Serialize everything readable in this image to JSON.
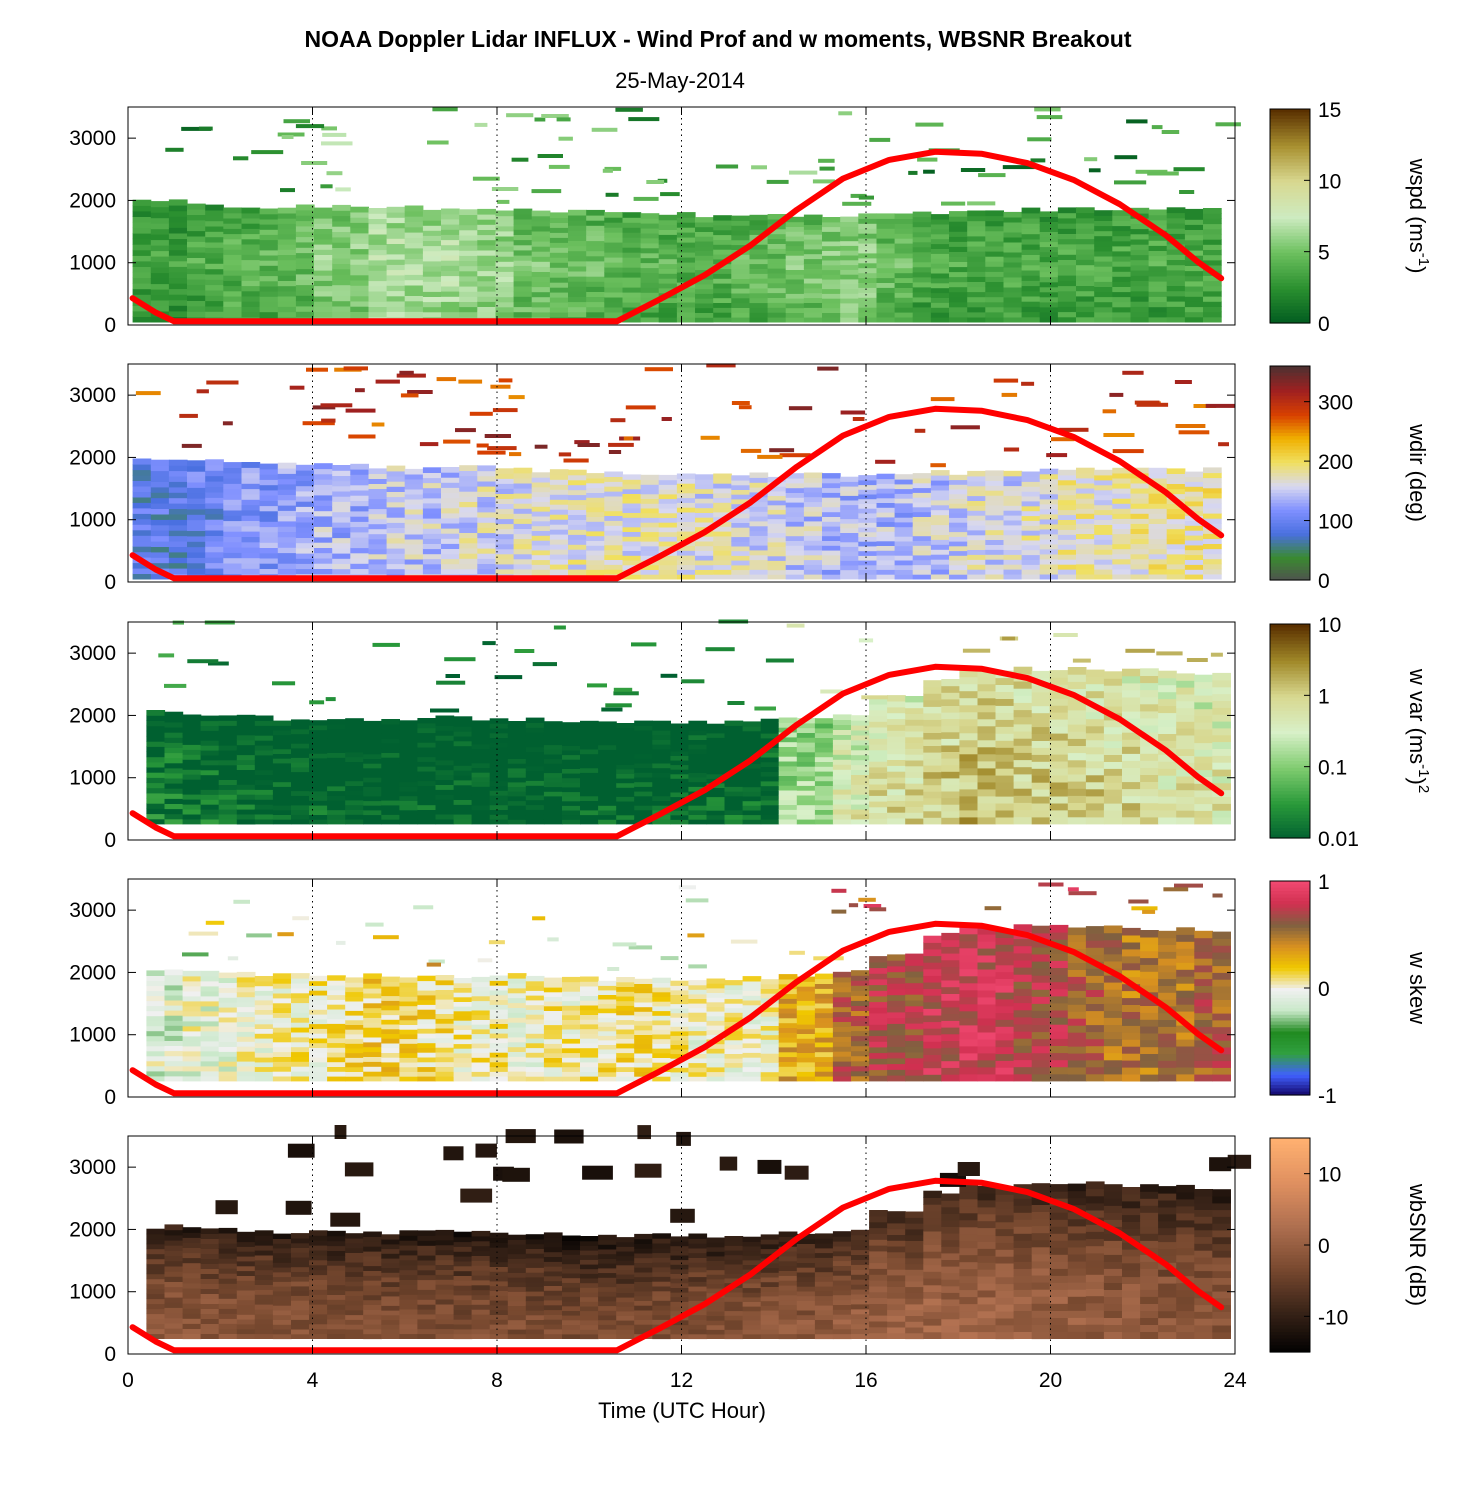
{
  "title": "NOAA Doppler Lidar INFLUX - Wind Prof and w moments, WBSNR Breakout",
  "subtitle": "25-May-2014",
  "chart_data": {
    "type": "heatmap",
    "x": {
      "label": "Time (UTC Hour)",
      "range": [
        0,
        24
      ],
      "ticks": [
        0,
        4,
        8,
        12,
        16,
        20,
        24
      ],
      "tick_labels": [
        "0",
        "4",
        "8",
        "12",
        "16",
        "20",
        "24"
      ],
      "dotted_grid": [
        4,
        8,
        12,
        16,
        20,
        24
      ]
    },
    "y": {
      "range": [
        0,
        3500
      ],
      "ticks": [
        0,
        1000,
        2000,
        3000
      ],
      "tick_labels": [
        "0",
        "1000",
        "2000",
        "3000"
      ]
    },
    "sun_curve": {
      "color": "#ff0000",
      "points": [
        [
          0.1,
          430
        ],
        [
          0.6,
          200
        ],
        [
          1.0,
          60
        ],
        [
          10.6,
          60
        ],
        [
          11.5,
          400
        ],
        [
          12.5,
          800
        ],
        [
          13.5,
          1280
        ],
        [
          14.5,
          1850
        ],
        [
          15.5,
          2350
        ],
        [
          16.5,
          2650
        ],
        [
          17.5,
          2780
        ],
        [
          18.5,
          2750
        ],
        [
          19.5,
          2600
        ],
        [
          20.5,
          2330
        ],
        [
          21.5,
          1940
        ],
        [
          22.5,
          1440
        ],
        [
          23.2,
          1010
        ],
        [
          23.7,
          750
        ]
      ]
    },
    "panels": [
      {
        "name": "wspd",
        "cbar_label_html": "wspd (ms<tspan dy='-9' font-size='15'>-1</tspan><tspan dy='9'>)</tspan>",
        "cbar_label_text": "wspd (ms-1)",
        "cbar_ticks": [
          "15",
          "10",
          "5",
          "0"
        ],
        "cbar_range": [
          0,
          15
        ],
        "cbar_scale": "linear",
        "colormap": [
          "#005a20",
          "#2a8f2f",
          "#6cc05e",
          "#cdebc0",
          "#d8d890",
          "#a89030",
          "#5a3000"
        ],
        "layer_top": [
          2000,
          1950,
          1900,
          1900,
          1900,
          1880,
          1880,
          1860,
          1850,
          1830,
          1800,
          1780,
          1760,
          1750,
          1760,
          1760,
          1780,
          1800,
          1820,
          1860,
          1880,
          1880,
          1870,
          1870
        ],
        "layer_bottom": 50,
        "layer_start": 0.1,
        "layer_end": 23.7,
        "profile": [
          2.5,
          3,
          3.5,
          4,
          5,
          6,
          6,
          5.5,
          4.5,
          4,
          3.5,
          3.5,
          3.5,
          4,
          4.5,
          5,
          4,
          3,
          3,
          3,
          3,
          3,
          3,
          3
        ],
        "scatter_count": 80,
        "scatter_max": 3480
      },
      {
        "name": "wdir",
        "cbar_label_html": "wdir (deg)",
        "cbar_label_text": "wdir (deg)",
        "cbar_ticks": [
          "300",
          "200",
          "100",
          "0"
        ],
        "cbar_range": [
          0,
          360
        ],
        "cbar_scale": "linear",
        "colormap": [
          "#505050",
          "#3a8a30",
          "#4a70e0",
          "#8090ff",
          "#d8d8f0",
          "#f0e060",
          "#f0b000",
          "#d84000",
          "#a02020",
          "#503030"
        ],
        "layer_top": [
          2000,
          1950,
          1900,
          1900,
          1880,
          1850,
          1850,
          1840,
          1800,
          1780,
          1760,
          1740,
          1730,
          1720,
          1720,
          1720,
          1740,
          1760,
          1780,
          1800,
          1800,
          1800,
          1810,
          1810
        ],
        "layer_bottom": 50,
        "layer_start": 0.1,
        "layer_end": 23.7,
        "profile": [
          90,
          100,
          120,
          130,
          140,
          150,
          150,
          160,
          165,
          170,
          170,
          170,
          165,
          160,
          150,
          140,
          140,
          150,
          160,
          170,
          175,
          180,
          185,
          185
        ],
        "scatter_count": 90,
        "scatter_max": 3450
      },
      {
        "name": "wvar",
        "cbar_label_html": "w var (ms<tspan dy='-9' font-size='15'>-1</tspan><tspan dy='9'>)</tspan><tspan dy='-9' font-size='15'>2</tspan>",
        "cbar_label_text": "w var (ms-1)2",
        "cbar_ticks": [
          "10",
          "1",
          "0.1",
          "0.01"
        ],
        "cbar_range": [
          0.01,
          10
        ],
        "cbar_scale": "log",
        "colormap": [
          "#006030",
          "#2a9a3a",
          "#80cc70",
          "#d8f0c8",
          "#d8d890",
          "#a08828",
          "#5a3000"
        ],
        "layer_top": [
          2050,
          2000,
          1980,
          1950,
          1950,
          1950,
          1960,
          1950,
          1950,
          1930,
          1900,
          1900,
          1900,
          1920,
          1950,
          2000,
          2300,
          2600,
          2700,
          2750,
          2750,
          2720,
          2700,
          2650
        ],
        "layer_bottom": 260,
        "layer_start": 0.4,
        "layer_end": 23.9,
        "profile": [
          0.02,
          0.015,
          0.012,
          0.011,
          0.01,
          0.01,
          0.01,
          0.01,
          0.01,
          0.01,
          0.01,
          0.011,
          0.012,
          0.015,
          0.2,
          0.5,
          0.8,
          1.2,
          1.5,
          1.2,
          1.0,
          0.9,
          0.7,
          0.6
        ],
        "scatter_count": 45,
        "scatter_max": 3480
      },
      {
        "name": "wskew",
        "cbar_label_html": "w skew",
        "cbar_label_text": "w skew",
        "cbar_ticks": [
          "1",
          "0",
          "-1"
        ],
        "cbar_range": [
          -1,
          1
        ],
        "cbar_scale": "linear",
        "colormap": [
          "#100060",
          "#4060ff",
          "#30a040",
          "#208a20",
          "#c8e8c8",
          "#f0f0f0",
          "#f0c800",
          "#d89020",
          "#806040",
          "#d03050",
          "#f04870"
        ],
        "layer_top": [
          2050,
          2000,
          1980,
          1950,
          1950,
          1950,
          1960,
          1950,
          1950,
          1930,
          1900,
          1900,
          1900,
          1920,
          1950,
          2000,
          2300,
          2600,
          2700,
          2750,
          2750,
          2720,
          2700,
          2650
        ],
        "layer_bottom": 260,
        "layer_start": 0.4,
        "layer_end": 23.9,
        "profile": [
          -0.1,
          -0.05,
          0.0,
          0.05,
          0.1,
          0.15,
          0.1,
          0.05,
          0.0,
          0.05,
          0.1,
          0.05,
          0.0,
          0.0,
          0.3,
          0.6,
          0.7,
          0.8,
          0.8,
          0.7,
          0.6,
          0.5,
          0.5,
          0.6
        ],
        "scatter_count": 45,
        "scatter_max": 3480
      },
      {
        "name": "wbsnr",
        "cbar_label_html": "wbSNR (dB)",
        "cbar_label_text": "wbSNR (dB)",
        "cbar_ticks": [
          "10",
          "0",
          "-10"
        ],
        "cbar_range": [
          -15,
          15
        ],
        "cbar_scale": "linear",
        "colormap": [
          "#000000",
          "#3a2418",
          "#7a4a30",
          "#b07050",
          "#e09060",
          "#ffb070"
        ],
        "layer_top": [
          2050,
          2000,
          1980,
          1950,
          1950,
          1950,
          1960,
          1950,
          1950,
          1930,
          1900,
          1900,
          1900,
          1920,
          1950,
          2000,
          2300,
          2600,
          2700,
          2750,
          2750,
          2720,
          2700,
          2650
        ],
        "layer_bottom": 250,
        "layer_start": 0.4,
        "layer_end": 23.9,
        "profile": [
          -1,
          -1,
          -1.5,
          -1.5,
          -2,
          -2,
          -2,
          -2.5,
          -2.5,
          -3,
          -3,
          -2.5,
          -2,
          -1.5,
          -1,
          0,
          0.5,
          1,
          1,
          0.5,
          0,
          -0.5,
          -1,
          -1.5
        ],
        "scatter_count": 25,
        "scatter_max": 3480
      }
    ]
  }
}
